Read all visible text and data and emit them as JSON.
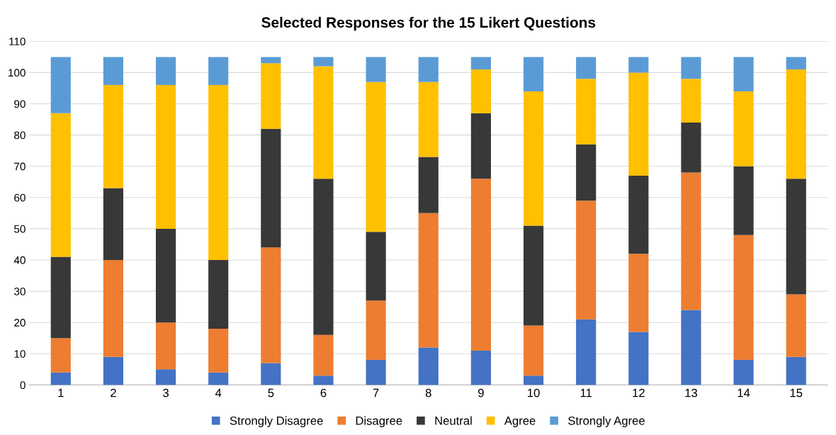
{
  "chart_data": {
    "type": "bar",
    "title": "Selected Responses for the 15 Likert Questions",
    "categories": [
      "1",
      "2",
      "3",
      "4",
      "5",
      "6",
      "7",
      "8",
      "9",
      "10",
      "11",
      "12",
      "13",
      "14",
      "15"
    ],
    "stacked": true,
    "ylim": [
      0,
      110
    ],
    "yticks": [
      0,
      10,
      20,
      30,
      40,
      50,
      60,
      70,
      80,
      90,
      100,
      110
    ],
    "grid": "y",
    "legend": "bottom",
    "series": [
      {
        "name": "Strongly Disagree",
        "color": "#4472c4",
        "values": [
          4,
          9,
          5,
          4,
          7,
          3,
          8,
          12,
          11,
          3,
          21,
          17,
          24,
          8,
          9
        ]
      },
      {
        "name": "Disagree",
        "color": "#ed7d31",
        "values": [
          11,
          31,
          15,
          14,
          37,
          13,
          19,
          43,
          55,
          16,
          38,
          25,
          44,
          40,
          20
        ]
      },
      {
        "name": "Neutral",
        "color": "#383838",
        "values": [
          26,
          23,
          30,
          22,
          38,
          50,
          22,
          18,
          21,
          32,
          18,
          25,
          16,
          22,
          37
        ]
      },
      {
        "name": "Agree",
        "color": "#ffc000",
        "values": [
          46,
          33,
          46,
          56,
          21,
          36,
          48,
          24,
          14,
          43,
          21,
          33,
          14,
          24,
          35
        ]
      },
      {
        "name": "Strongly Agree",
        "color": "#5b9bd5",
        "values": [
          18,
          9,
          9,
          9,
          2,
          3,
          8,
          8,
          4,
          11,
          7,
          5,
          7,
          11,
          4
        ]
      }
    ]
  }
}
